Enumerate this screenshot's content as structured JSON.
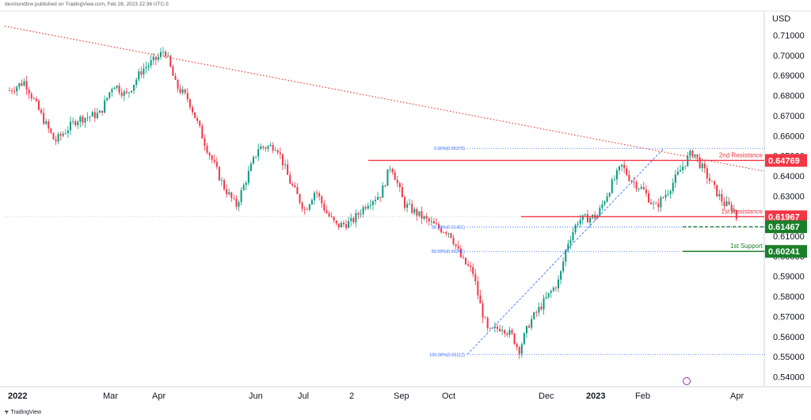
{
  "header": {
    "publisher_text": "desmondlzw published on TradingView.com, Feb 28, 2023 22:36 UTC-5"
  },
  "footer": {
    "brand": "TradingView",
    "logo": "tradingview-logo-icon"
  },
  "chart_data": {
    "type": "candlestick",
    "currency_label": "USD",
    "y_ticks": [
      "0.71000",
      "0.70000",
      "0.69000",
      "0.68000",
      "0.67000",
      "0.66000",
      "0.65000",
      "0.64000",
      "0.63000",
      "0.62000",
      "0.61000",
      "0.60000",
      "0.59000",
      "0.58000",
      "0.57000",
      "0.56000",
      "0.55000",
      "0.54000"
    ],
    "ylim": [
      0.537,
      0.7165
    ],
    "x_ticks": [
      "2022",
      "Mar",
      "Apr",
      "Jun",
      "Jul",
      "2",
      "Sep",
      "Oct",
      "Dec",
      "2023",
      "Feb",
      "Apr"
    ],
    "price_path": [
      [
        "2022-01-01",
        0.6825
      ],
      [
        "2022-01-10",
        0.687
      ],
      [
        "2022-01-20",
        0.67
      ],
      [
        "2022-01-28",
        0.657
      ],
      [
        "2022-02-10",
        0.668
      ],
      [
        "2022-02-24",
        0.671
      ],
      [
        "2022-03-04",
        0.686
      ],
      [
        "2022-03-12",
        0.68
      ],
      [
        "2022-03-22",
        0.693
      ],
      [
        "2022-04-01",
        0.699
      ],
      [
        "2022-04-05",
        0.703
      ],
      [
        "2022-04-12",
        0.685
      ],
      [
        "2022-04-20",
        0.678
      ],
      [
        "2022-05-01",
        0.655
      ],
      [
        "2022-05-12",
        0.635
      ],
      [
        "2022-05-20",
        0.625
      ],
      [
        "2022-06-03",
        0.654
      ],
      [
        "2022-06-14",
        0.655
      ],
      [
        "2022-06-22",
        0.637
      ],
      [
        "2022-07-01",
        0.623
      ],
      [
        "2022-07-08",
        0.633
      ],
      [
        "2022-07-15",
        0.622
      ],
      [
        "2022-07-22",
        0.615
      ],
      [
        "2022-08-01",
        0.617
      ],
      [
        "2022-08-11",
        0.627
      ],
      [
        "2022-08-19",
        0.631
      ],
      [
        "2022-08-25",
        0.646
      ],
      [
        "2022-09-02",
        0.626
      ],
      [
        "2022-09-12",
        0.62
      ],
      [
        "2022-09-23",
        0.614
      ],
      [
        "2022-09-30",
        0.612
      ],
      [
        "2022-10-08",
        0.598
      ],
      [
        "2022-10-15",
        0.592
      ],
      [
        "2022-10-20",
        0.575
      ],
      [
        "2022-10-25",
        0.562
      ],
      [
        "2022-11-03",
        0.565
      ],
      [
        "2022-11-10",
        0.56
      ],
      [
        "2022-11-14",
        0.553
      ],
      [
        "2022-11-21",
        0.567
      ],
      [
        "2022-12-01",
        0.578
      ],
      [
        "2022-12-10",
        0.588
      ],
      [
        "2022-12-15",
        0.606
      ],
      [
        "2022-12-22",
        0.618
      ],
      [
        "2023-01-03",
        0.62
      ],
      [
        "2023-01-12",
        0.635
      ],
      [
        "2023-01-19",
        0.645
      ],
      [
        "2023-01-25",
        0.638
      ],
      [
        "2023-02-02",
        0.633
      ],
      [
        "2023-02-09",
        0.624
      ],
      [
        "2023-02-17",
        0.633
      ],
      [
        "2023-02-24",
        0.643
      ],
      [
        "2023-03-01",
        0.65
      ],
      [
        "2023-03-04",
        0.652
      ],
      [
        "2023-03-08",
        0.646
      ],
      [
        "2023-03-12",
        0.641
      ],
      [
        "2023-03-18",
        0.633
      ],
      [
        "2023-03-24",
        0.626
      ],
      [
        "2023-03-30",
        0.6235
      ],
      [
        "2023-04-06",
        0.619
      ],
      [
        "2023-04-12",
        0.615
      ],
      [
        "2023-04-15",
        0.616
      ],
      [
        "2023-04-18",
        0.619
      ]
    ],
    "trendline": {
      "style": "dotted",
      "color": "#e53935"
    },
    "fib_levels": [
      {
        "label": "0.00%(0.65370)",
        "price": 0.6537
      },
      {
        "label": "38.20%(0.61451)",
        "price": 0.61451
      },
      {
        "label": "50.00%(0.60241)",
        "price": 0.60241
      },
      {
        "label": "100.00%(0.55112)",
        "price": 0.55112
      }
    ],
    "levels": [
      {
        "name": "2nd Resistance",
        "price_label": "0.64769",
        "price": 0.64769,
        "color": "#f23645"
      },
      {
        "name": "1st Resistance",
        "price_label": "0.61967",
        "price": 0.61967,
        "color": "#f23645"
      },
      {
        "name": "",
        "price_label": "0.61467",
        "price": 0.61467,
        "color": "#1b7f2a"
      },
      {
        "name": "1st Support",
        "price_label": "0.60241",
        "price": 0.60241,
        "color": "#1b7f2a"
      }
    ],
    "colors": {
      "up": "#089981",
      "down": "#f23645",
      "grid": "#e9ebf0",
      "fib": "#2962ff"
    },
    "grid": false,
    "legend": "none"
  }
}
